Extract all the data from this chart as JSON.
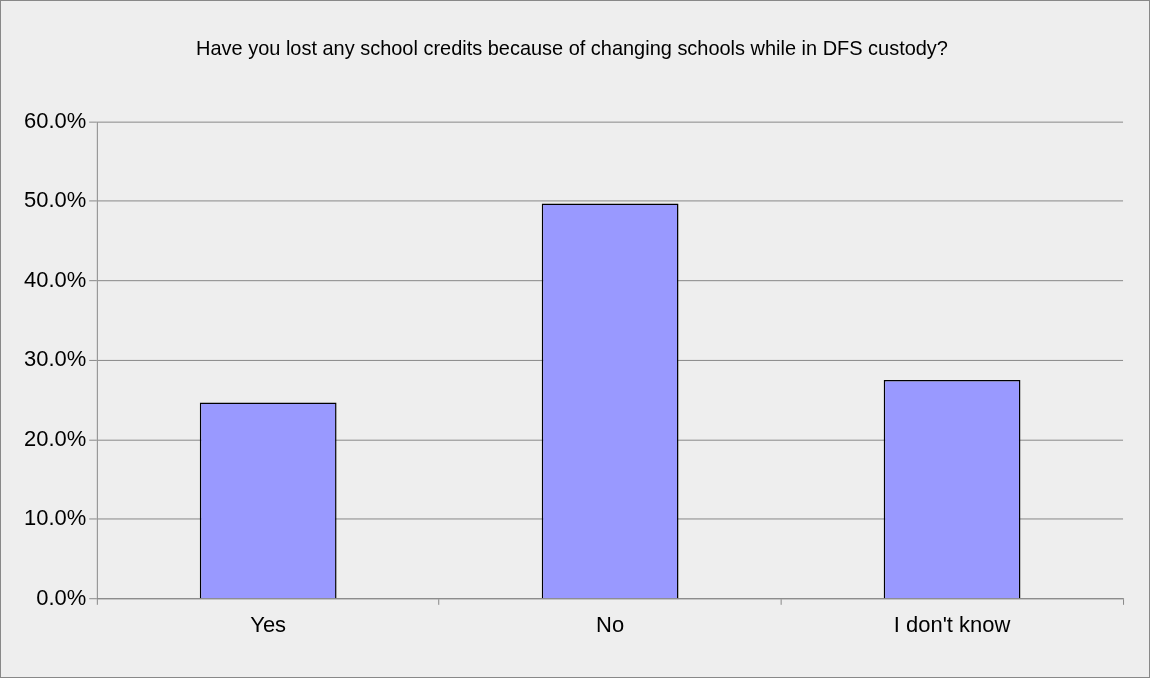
{
  "chart_data": {
    "type": "bar",
    "title": "Have you lost any school credits because of changing schools while in DFS custody?",
    "categories": [
      "Yes",
      "No",
      "I don't know"
    ],
    "values": [
      24.7,
      49.7,
      27.5
    ],
    "color": "#9999ff",
    "ylim": [
      0,
      60
    ],
    "yticks": [
      {
        "value": 0,
        "label": "0.0%"
      },
      {
        "value": 10,
        "label": "10.0%"
      },
      {
        "value": 20,
        "label": "20.0%"
      },
      {
        "value": 30,
        "label": "30.0%"
      },
      {
        "value": 40,
        "label": "40.0%"
      },
      {
        "value": 50,
        "label": "50.0%"
      },
      {
        "value": 60,
        "label": "60.0%"
      }
    ],
    "grid": "y",
    "legend": false
  }
}
